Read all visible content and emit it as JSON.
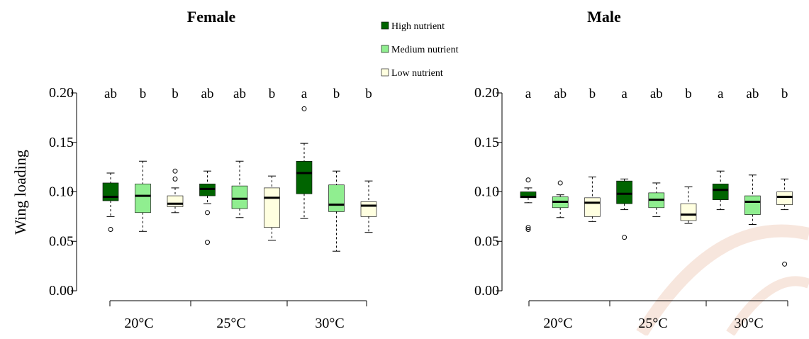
{
  "colors": {
    "high": "#006400",
    "medium": "#90ee90",
    "low": "#ffffe0",
    "stroke": "#000000",
    "watermark": "#f5d9cc"
  },
  "legend": {
    "position": "top-center",
    "items": [
      {
        "key": "high",
        "label": "High nutrient"
      },
      {
        "key": "medium",
        "label": "Medium nutrient"
      },
      {
        "key": "low",
        "label": "Low nutrient"
      }
    ]
  },
  "chart_data": [
    {
      "type": "box",
      "title": "Female",
      "ylabel": "Wing loading",
      "ylim": [
        0,
        0.2
      ],
      "yticks": [
        "0.00",
        "0.05",
        "0.10",
        "0.15",
        "0.20"
      ],
      "yticks_values": [
        0,
        0.05,
        0.1,
        0.15,
        0.2
      ],
      "categories": [
        "20°C",
        "25°C",
        "30°C"
      ],
      "boxes": [
        {
          "group": "20°C",
          "nutrient": "high",
          "min": 0.075,
          "q1": 0.091,
          "median": 0.095,
          "q3": 0.109,
          "max": 0.119,
          "outliers": [
            0.062
          ],
          "letter": "ab"
        },
        {
          "group": "20°C",
          "nutrient": "medium",
          "min": 0.06,
          "q1": 0.079,
          "median": 0.096,
          "q3": 0.108,
          "max": 0.131,
          "outliers": [],
          "letter": "b"
        },
        {
          "group": "20°C",
          "nutrient": "low",
          "min": 0.079,
          "q1": 0.085,
          "median": 0.088,
          "q3": 0.096,
          "max": 0.104,
          "outliers": [
            0.113,
            0.121
          ],
          "letter": "b"
        },
        {
          "group": "25°C",
          "nutrient": "high",
          "min": 0.088,
          "q1": 0.096,
          "median": 0.103,
          "q3": 0.108,
          "max": 0.121,
          "outliers": [
            0.079,
            0.049
          ],
          "letter": "ab"
        },
        {
          "group": "25°C",
          "nutrient": "medium",
          "min": 0.074,
          "q1": 0.083,
          "median": 0.093,
          "q3": 0.106,
          "max": 0.131,
          "outliers": [],
          "letter": "ab"
        },
        {
          "group": "25°C",
          "nutrient": "low",
          "min": 0.051,
          "q1": 0.064,
          "median": 0.094,
          "q3": 0.104,
          "max": 0.116,
          "outliers": [],
          "letter": "b"
        },
        {
          "group": "30°C",
          "nutrient": "high",
          "min": 0.073,
          "q1": 0.098,
          "median": 0.119,
          "q3": 0.131,
          "max": 0.149,
          "outliers": [
            0.184
          ],
          "letter": "a"
        },
        {
          "group": "30°C",
          "nutrient": "medium",
          "min": 0.04,
          "q1": 0.08,
          "median": 0.087,
          "q3": 0.107,
          "max": 0.121,
          "outliers": [],
          "letter": "b"
        },
        {
          "group": "30°C",
          "nutrient": "low",
          "min": 0.059,
          "q1": 0.075,
          "median": 0.086,
          "q3": 0.09,
          "max": 0.111,
          "outliers": [],
          "letter": "b"
        }
      ]
    },
    {
      "type": "box",
      "title": "Male",
      "ylabel": "",
      "ylim": [
        0,
        0.2
      ],
      "yticks": [
        "0.00",
        "0.05",
        "0.10",
        "0.15",
        "0.20"
      ],
      "yticks_values": [
        0,
        0.05,
        0.1,
        0.15,
        0.2
      ],
      "categories": [
        "20°C",
        "25°C",
        "30°C"
      ],
      "boxes": [
        {
          "group": "20°C",
          "nutrient": "high",
          "min": 0.089,
          "q1": 0.094,
          "median": 0.095,
          "q3": 0.1,
          "max": 0.104,
          "outliers": [
            0.112,
            0.064,
            0.062
          ],
          "letter": "a"
        },
        {
          "group": "20°C",
          "nutrient": "medium",
          "min": 0.074,
          "q1": 0.084,
          "median": 0.09,
          "q3": 0.095,
          "max": 0.097,
          "outliers": [
            0.109
          ],
          "letter": "ab"
        },
        {
          "group": "20°C",
          "nutrient": "low",
          "min": 0.07,
          "q1": 0.075,
          "median": 0.089,
          "q3": 0.094,
          "max": 0.115,
          "outliers": [],
          "letter": "b"
        },
        {
          "group": "25°C",
          "nutrient": "high",
          "min": 0.082,
          "q1": 0.088,
          "median": 0.098,
          "q3": 0.111,
          "max": 0.113,
          "outliers": [
            0.054
          ],
          "letter": "a"
        },
        {
          "group": "25°C",
          "nutrient": "medium",
          "min": 0.075,
          "q1": 0.084,
          "median": 0.092,
          "q3": 0.099,
          "max": 0.109,
          "outliers": [],
          "letter": "ab"
        },
        {
          "group": "25°C",
          "nutrient": "low",
          "min": 0.068,
          "q1": 0.071,
          "median": 0.077,
          "q3": 0.088,
          "max": 0.105,
          "outliers": [],
          "letter": "b"
        },
        {
          "group": "30°C",
          "nutrient": "high",
          "min": 0.082,
          "q1": 0.092,
          "median": 0.102,
          "q3": 0.108,
          "max": 0.121,
          "outliers": [],
          "letter": "a"
        },
        {
          "group": "30°C",
          "nutrient": "medium",
          "min": 0.067,
          "q1": 0.077,
          "median": 0.09,
          "q3": 0.096,
          "max": 0.117,
          "outliers": [],
          "letter": "ab"
        },
        {
          "group": "30°C",
          "nutrient": "low",
          "min": 0.082,
          "q1": 0.087,
          "median": 0.095,
          "q3": 0.1,
          "max": 0.113,
          "outliers": [
            0.027
          ],
          "letter": "b"
        }
      ]
    }
  ]
}
